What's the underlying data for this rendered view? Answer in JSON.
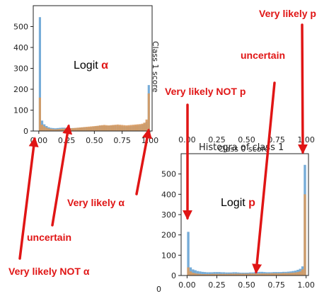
{
  "colors": {
    "blue_series": "#6fa8d6",
    "orange_series": "#d99a5e",
    "annotation": "#e01515",
    "axis": "#222222"
  },
  "chart_data": [
    {
      "type": "bar",
      "id": "left",
      "title": "",
      "xlabel": "",
      "ylabel": "Class 1 score",
      "xlim": [
        -0.05,
        1.02
      ],
      "ylim": [
        0,
        600
      ],
      "xticks": [
        "0.00",
        "0.25",
        "0.50",
        "0.75",
        "1.00"
      ],
      "xtick_values": [
        0,
        0.25,
        0.5,
        0.75,
        1.0
      ],
      "yticks": [
        "0",
        "100",
        "200",
        "300",
        "400",
        "500"
      ],
      "ytick_values": [
        0,
        100,
        200,
        300,
        400,
        500
      ],
      "logit_prefix": "Logit ",
      "logit_symbol": "α",
      "bin_width": 0.02,
      "series": [
        {
          "color_key": "blue_series",
          "values": [
            545,
            50,
            32,
            24,
            18,
            15,
            14,
            13,
            14,
            15,
            16,
            16,
            15,
            15,
            14,
            14,
            14,
            15,
            16,
            17,
            18,
            17,
            16,
            18,
            20,
            22,
            24,
            25,
            26,
            25,
            24,
            25,
            26,
            27,
            26,
            25,
            24,
            23,
            22,
            21,
            22,
            23,
            24,
            25,
            26,
            28,
            30,
            35,
            45,
            220
          ]
        },
        {
          "color_key": "orange_series",
          "values": [
            160,
            30,
            22,
            16,
            12,
            10,
            9,
            8,
            9,
            10,
            11,
            12,
            12,
            13,
            13,
            14,
            15,
            16,
            17,
            18,
            19,
            20,
            21,
            22,
            23,
            24,
            25,
            27,
            28,
            29,
            28,
            27,
            28,
            29,
            30,
            31,
            30,
            29,
            28,
            27,
            28,
            29,
            30,
            31,
            32,
            33,
            35,
            40,
            55,
            180
          ]
        }
      ]
    },
    {
      "type": "bar",
      "id": "right",
      "title": "Histogra of class 1",
      "top_axis_label": "Class 0 score",
      "xlabel": "",
      "ylabel": "",
      "xlim": [
        -0.05,
        1.02
      ],
      "ylim": [
        0,
        600
      ],
      "xticks": [
        "0.00",
        "0.25",
        "0.50",
        "0.75",
        "1.00"
      ],
      "xtick_values": [
        0,
        0.25,
        0.5,
        0.75,
        1.0
      ],
      "top_xticks": [
        "0.00",
        "0.25",
        "0.50",
        "0.75",
        "1.00"
      ],
      "yticks": [
        "0",
        "100",
        "200",
        "300",
        "400",
        "500"
      ],
      "ytick_values": [
        0,
        100,
        200,
        300,
        400,
        500
      ],
      "logit_prefix": "Logit ",
      "logit_symbol": "p",
      "bin_width": 0.02,
      "series": [
        {
          "color_key": "blue_series",
          "values": [
            215,
            40,
            30,
            26,
            22,
            20,
            18,
            17,
            16,
            16,
            16,
            17,
            17,
            17,
            16,
            16,
            15,
            15,
            15,
            16,
            16,
            15,
            14,
            14,
            14,
            14,
            15,
            15,
            16,
            17,
            18,
            18,
            17,
            16,
            16,
            16,
            17,
            17,
            17,
            17,
            18,
            18,
            19,
            20,
            22,
            24,
            28,
            33,
            45,
            545
          ]
        },
        {
          "color_key": "orange_series",
          "values": [
            40,
            20,
            14,
            11,
            9,
            8,
            7,
            7,
            7,
            7,
            8,
            8,
            8,
            8,
            8,
            8,
            8,
            8,
            9,
            9,
            9,
            9,
            9,
            9,
            9,
            9,
            10,
            10,
            10,
            10,
            10,
            10,
            10,
            10,
            10,
            11,
            11,
            11,
            11,
            11,
            12,
            12,
            12,
            13,
            14,
            15,
            17,
            20,
            30,
            400
          ]
        }
      ]
    }
  ],
  "annotations": {
    "very_likely_not_alpha": "Very likely NOT α",
    "uncertain_left": "uncertain",
    "very_likely_alpha": "Very likely α",
    "very_likely_not_p": "Very likely NOT p",
    "uncertain_right": "uncertain",
    "very_likely_p": "Very likely p"
  },
  "stray_tick": "0"
}
